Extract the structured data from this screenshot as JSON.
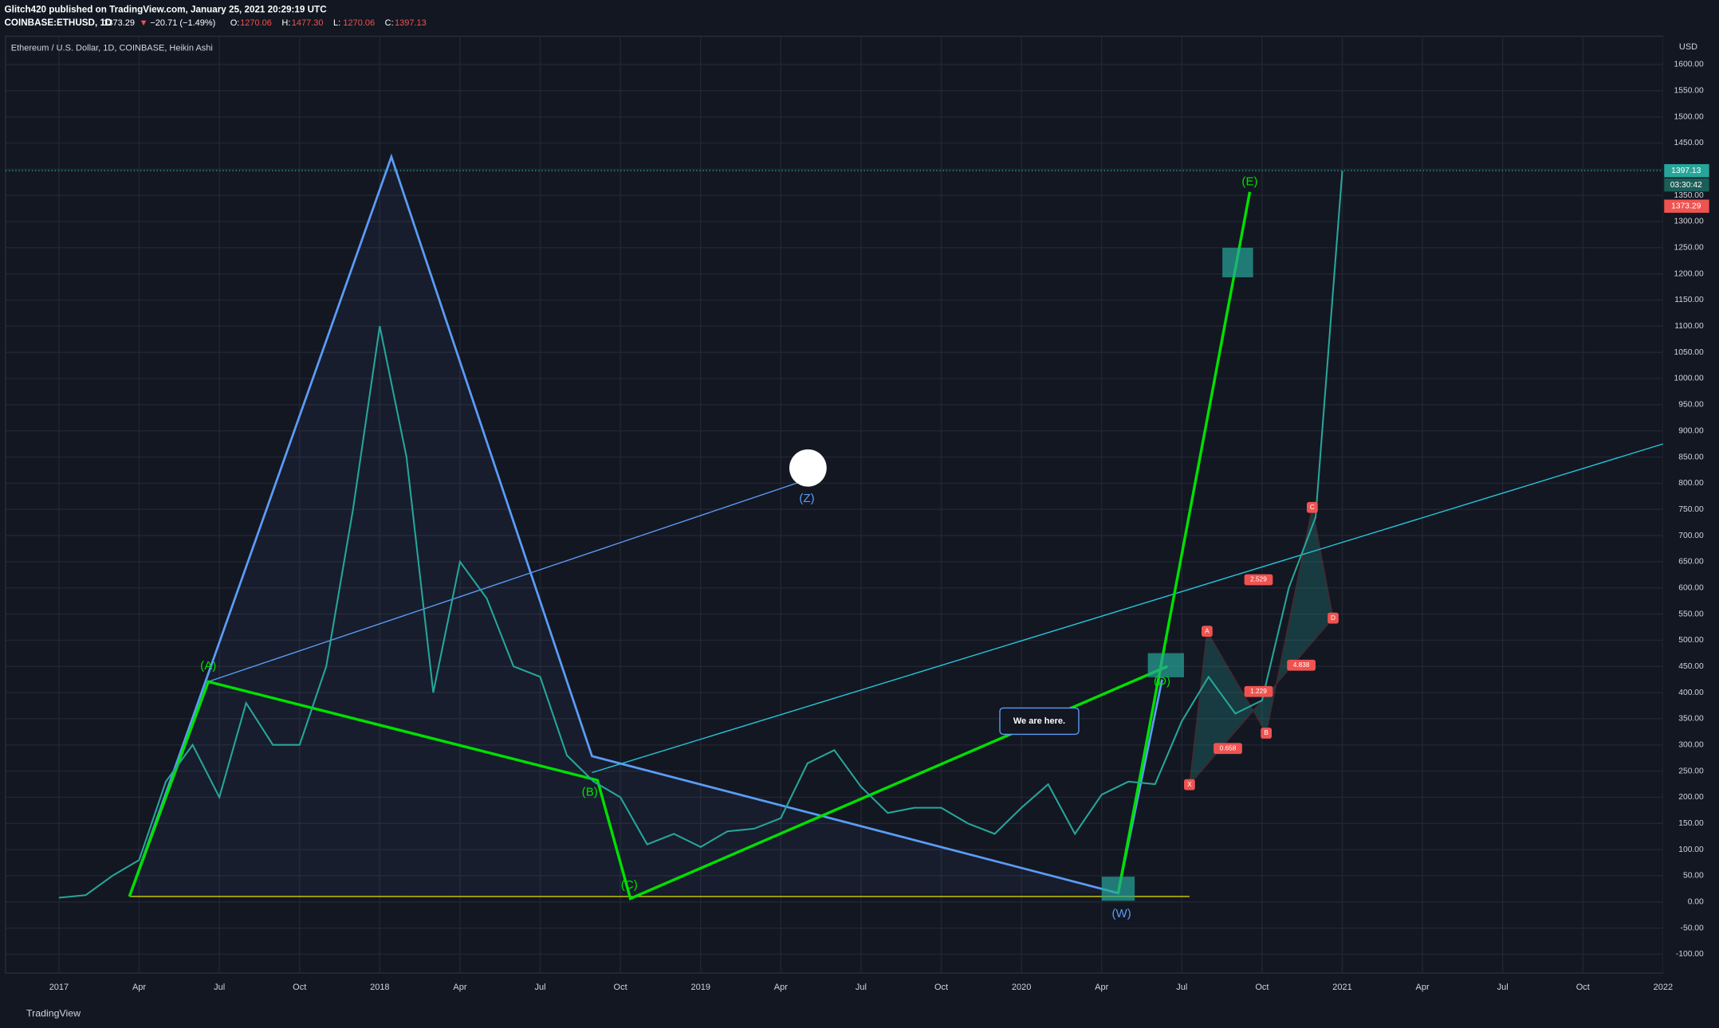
{
  "header": {
    "publisher": "Glitch420 published on TradingView.com, January 25, 2021 20:29:19 UTC",
    "symbol": "COINBASE:ETHUSD, 1D",
    "close": "1373.29",
    "arrow": "▼",
    "change": "−20.71 (−1.49%)",
    "ohlc": [
      {
        "key": "O:",
        "val": "1270.06"
      },
      {
        "key": "H:",
        "val": "1477.30"
      },
      {
        "key": "L:",
        "val": "1270.06"
      },
      {
        "key": "C:",
        "val": "1397.13"
      }
    ]
  },
  "chart_data": {
    "type": "line",
    "title": "Ethereum / U.S. Dollar, 1D, COINBASE, Heikin Ashi",
    "color": "#26a69a",
    "x": [
      "2017-01",
      "2017-02",
      "2017-03",
      "2017-04",
      "2017-05",
      "2017-06",
      "2017-07",
      "2017-08",
      "2017-09",
      "2017-10",
      "2017-11",
      "2017-12",
      "2018-01",
      "2018-02",
      "2018-03",
      "2018-04",
      "2018-05",
      "2018-06",
      "2018-07",
      "2018-08",
      "2018-09",
      "2018-10",
      "2018-11",
      "2018-12",
      "2019-01",
      "2019-02",
      "2019-03",
      "2019-04",
      "2019-05",
      "2019-06",
      "2019-07",
      "2019-08",
      "2019-09",
      "2019-10",
      "2019-11",
      "2019-12",
      "2020-01",
      "2020-02",
      "2020-03",
      "2020-04",
      "2020-05",
      "2020-06",
      "2020-07",
      "2020-08",
      "2020-09",
      "2020-10",
      "2020-11",
      "2020-12",
      "2021-01"
    ],
    "values": [
      8,
      13,
      50,
      80,
      230,
      300,
      200,
      380,
      300,
      300,
      450,
      750,
      1100,
      850,
      400,
      650,
      580,
      450,
      430,
      280,
      230,
      200,
      110,
      130,
      105,
      135,
      140,
      160,
      265,
      290,
      220,
      170,
      180,
      180,
      150,
      130,
      180,
      225,
      130,
      205,
      230,
      225,
      345,
      430,
      360,
      385,
      600,
      735,
      1397
    ],
    "xlim": [
      "2016-11",
      "2022-01"
    ],
    "xticks": [
      {
        "value": "2017-01",
        "label": "2017"
      },
      {
        "value": "2017-04",
        "label": "Apr"
      },
      {
        "value": "2017-07",
        "label": "Jul"
      },
      {
        "value": "2017-10",
        "label": "Oct"
      },
      {
        "value": "2018-01",
        "label": "2018"
      },
      {
        "value": "2018-04",
        "label": "Apr"
      },
      {
        "value": "2018-07",
        "label": "Jul"
      },
      {
        "value": "2018-10",
        "label": "Oct"
      },
      {
        "value": "2019-01",
        "label": "2019"
      },
      {
        "value": "2019-04",
        "label": "Apr"
      },
      {
        "value": "2019-07",
        "label": "Jul"
      },
      {
        "value": "2019-10",
        "label": "Oct"
      },
      {
        "value": "2020-01",
        "label": "2020"
      },
      {
        "value": "2020-04",
        "label": "Apr"
      },
      {
        "value": "2020-07",
        "label": "Jul"
      },
      {
        "value": "2020-10",
        "label": "Oct"
      },
      {
        "value": "2021-01",
        "label": "2021"
      },
      {
        "value": "2021-04",
        "label": "Apr"
      },
      {
        "value": "2021-07",
        "label": "Jul"
      },
      {
        "value": "2021-10",
        "label": "Oct"
      },
      {
        "value": "2022-01",
        "label": "2022"
      }
    ],
    "ylim": [
      -136,
      1654
    ],
    "yticks": [
      {
        "value": -100,
        "label": "-100.00"
      },
      {
        "value": -50,
        "label": "-50.00"
      },
      {
        "value": 0,
        "label": "0.00"
      },
      {
        "value": 50,
        "label": "50.00"
      },
      {
        "value": 100,
        "label": "100.00"
      },
      {
        "value": 150,
        "label": "150.00"
      },
      {
        "value": 200,
        "label": "200.00"
      },
      {
        "value": 250,
        "label": "250.00"
      },
      {
        "value": 300,
        "label": "300.00"
      },
      {
        "value": 350,
        "label": "350.00"
      },
      {
        "value": 400,
        "label": "400.00"
      },
      {
        "value": 450,
        "label": "450.00"
      },
      {
        "value": 500,
        "label": "500.00"
      },
      {
        "value": 550,
        "label": "550.00"
      },
      {
        "value": 600,
        "label": "600.00"
      },
      {
        "value": 650,
        "label": "650.00"
      },
      {
        "value": 700,
        "label": "700.00"
      },
      {
        "value": 750,
        "label": "750.00"
      },
      {
        "value": 800,
        "label": "800.00"
      },
      {
        "value": 850,
        "label": "850.00"
      },
      {
        "value": 900,
        "label": "900.00"
      },
      {
        "value": 950,
        "label": "950.00"
      },
      {
        "value": 1000,
        "label": "1000.00"
      },
      {
        "value": 1050,
        "label": "1050.00"
      },
      {
        "value": 1100,
        "label": "1100.00"
      },
      {
        "value": 1150,
        "label": "1150.00"
      },
      {
        "value": 1200,
        "label": "1200.00"
      },
      {
        "value": 1250,
        "label": "1250.00"
      },
      {
        "value": 1300,
        "label": "1300.00"
      },
      {
        "value": 1350,
        "label": "1350.00"
      },
      {
        "value": 1400,
        "label": "1400.00"
      },
      {
        "value": 1450,
        "label": "1450.00"
      },
      {
        "value": 1500,
        "label": "1500.00"
      },
      {
        "value": 1550,
        "label": "1550.00"
      },
      {
        "value": 1600,
        "label": "1600.00"
      }
    ],
    "grid": true,
    "currency": "USD",
    "last_price": {
      "value": 1397.13,
      "label": "1397.13"
    },
    "countdown": "03:30:42",
    "prev_price": {
      "value": 1373.29,
      "label": "1373.29"
    },
    "annotations": {
      "wave": [
        "(A)",
        "(B)",
        "(C)",
        "(D)",
        "(E)",
        "(W)",
        "(Z)"
      ],
      "note": "We are here.",
      "pattern": [
        "X",
        "A",
        "B",
        "C",
        "D"
      ],
      "ratios": [
        "2.529",
        "1.229",
        "0.658",
        "4.838"
      ]
    }
  },
  "footer": {
    "brand": "TradingView"
  }
}
